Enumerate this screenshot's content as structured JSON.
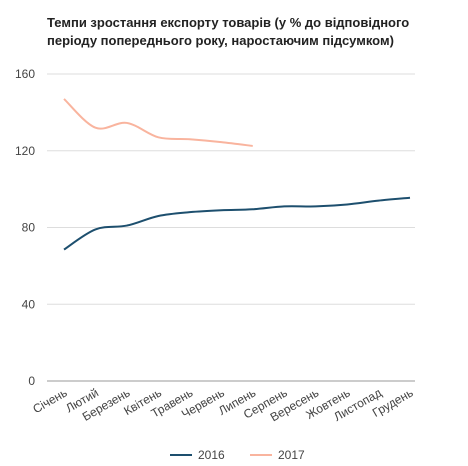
{
  "chart_data": {
    "type": "line",
    "title": "Темпи зростання експорту товарів (у % до відповідного періоду попереднього року, наростаючим підсумком)",
    "categories": [
      "Січень",
      "Лютий",
      "Березень",
      "Квітень",
      "Травень",
      "Червень",
      "Липень",
      "Серпень",
      "Вересень",
      "Жовтень",
      "Листопад",
      "Грудень"
    ],
    "series": [
      {
        "name": "2016",
        "color": "#1d4f6e",
        "values": [
          68.5,
          79,
          81,
          86,
          88,
          89,
          89.5,
          91,
          91,
          92,
          94,
          95.5
        ]
      },
      {
        "name": "2017",
        "color": "#f9b49e",
        "values": [
          147,
          132,
          134.5,
          127,
          126,
          124.5,
          122.5,
          null,
          null,
          null,
          null,
          null
        ]
      }
    ],
    "ylim": [
      0,
      160
    ],
    "yticks": [
      0,
      40,
      80,
      120,
      160
    ],
    "grid": true,
    "legend": "bottom"
  }
}
